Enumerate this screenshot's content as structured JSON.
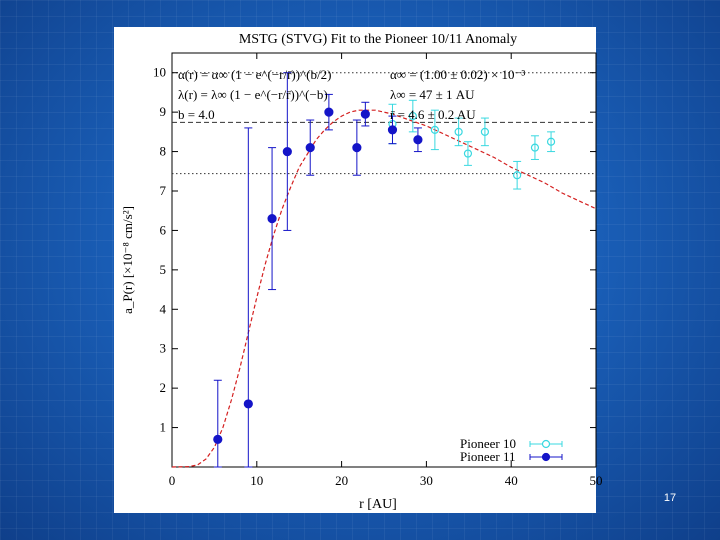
{
  "slide": {
    "page_number": "17"
  },
  "colors": {
    "pioneer10": "#38d8e0",
    "pioneer11": "#1414c8",
    "fit_curve": "#d42020",
    "frame": "#000000"
  },
  "chart_data": {
    "type": "scatter",
    "title": "MSTG (STVG) Fit to the Pioneer 10/11 Anomaly",
    "xlabel": "r [AU]",
    "ylabel": "a_P(r) [×10⁻⁸ cm/s²]",
    "xlim": [
      0,
      50
    ],
    "ylim": [
      0,
      10.5
    ],
    "x_ticks": [
      0,
      10,
      20,
      30,
      40,
      50
    ],
    "y_ticks": [
      1,
      2,
      3,
      4,
      5,
      6,
      7,
      8,
      9,
      10
    ],
    "annotations_left": [
      "α(r) = α∞ (1 − e^(−r/r̄))^(b/2)",
      "λ(r) = λ∞ (1 − e^(−r/r̄))^(−b)",
      "b = 4.0"
    ],
    "annotations_right": [
      "α∞ = (1.00 ± 0.02) × 10⁻³",
      "λ∞ = 47 ± 1 AU",
      "r̄ = 4.6 ± 0.2 AU"
    ],
    "reference_lines": [
      {
        "y": 10.0,
        "style": "dotted"
      },
      {
        "y": 8.74,
        "style": "dashed"
      },
      {
        "y": 7.44,
        "style": "dotted"
      }
    ],
    "series": [
      {
        "name": "Pioneer 10",
        "marker": "open-circle",
        "points": [
          {
            "x": 26.0,
            "y": 8.7,
            "err": 0.5
          },
          {
            "x": 28.4,
            "y": 8.9,
            "err": 0.4
          },
          {
            "x": 31.0,
            "y": 8.55,
            "err": 0.5
          },
          {
            "x": 33.8,
            "y": 8.5,
            "err": 0.35
          },
          {
            "x": 34.9,
            "y": 7.95,
            "err": 0.3
          },
          {
            "x": 36.9,
            "y": 8.5,
            "err": 0.35
          },
          {
            "x": 40.7,
            "y": 7.4,
            "err": 0.35
          },
          {
            "x": 42.8,
            "y": 8.1,
            "err": 0.3
          },
          {
            "x": 44.7,
            "y": 8.25,
            "err": 0.25
          }
        ]
      },
      {
        "name": "Pioneer 11",
        "marker": "filled-circle",
        "points": [
          {
            "x": 5.4,
            "y": 0.7,
            "err": 1.5
          },
          {
            "x": 9.0,
            "y": 1.6,
            "err": 7.0
          },
          {
            "x": 11.8,
            "y": 6.3,
            "err": 1.8
          },
          {
            "x": 13.6,
            "y": 8.0,
            "err": 2.0
          },
          {
            "x": 16.3,
            "y": 8.1,
            "err": 0.7
          },
          {
            "x": 18.5,
            "y": 9.0,
            "err": 0.45
          },
          {
            "x": 21.8,
            "y": 8.1,
            "err": 0.7
          },
          {
            "x": 22.8,
            "y": 8.95,
            "err": 0.3
          },
          {
            "x": 26.0,
            "y": 8.55,
            "err": 0.35
          },
          {
            "x": 29.0,
            "y": 8.3,
            "err": 0.3
          }
        ]
      }
    ],
    "fit_curve": {
      "name": "MSTG fit",
      "style": "dashed",
      "x": [
        0,
        2,
        3,
        4,
        5,
        6,
        7,
        8,
        9,
        10,
        11,
        12,
        13,
        14,
        15,
        16,
        17,
        18,
        19,
        20,
        21,
        22,
        24,
        26,
        28,
        30,
        32,
        34,
        36,
        38,
        40,
        42,
        44,
        46,
        48,
        50
      ],
      "y": [
        0,
        0.01,
        0.05,
        0.2,
        0.5,
        1.0,
        1.7,
        2.5,
        3.4,
        4.3,
        5.15,
        5.9,
        6.55,
        7.1,
        7.6,
        7.95,
        8.3,
        8.55,
        8.75,
        8.9,
        9.0,
        9.05,
        9.05,
        8.95,
        8.8,
        8.65,
        8.45,
        8.25,
        8.05,
        7.85,
        7.6,
        7.4,
        7.2,
        6.95,
        6.75,
        6.55
      ]
    },
    "legend": {
      "placement": "bottom-right",
      "entries": [
        "Pioneer 10",
        "Pioneer 11"
      ]
    }
  }
}
